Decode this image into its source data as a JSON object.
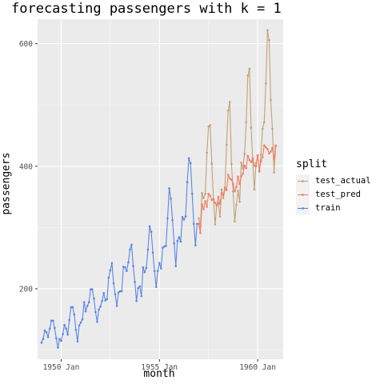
{
  "chart_data": {
    "type": "line",
    "title": "forecasting passengers with k = 1",
    "xlabel": "month",
    "ylabel": "passengers",
    "xlim": [
      1948.8,
      1961.3
    ],
    "ylim": [
      85,
      640
    ],
    "x_ticks": [
      {
        "value": 1950.0,
        "label": "1950 Jan"
      },
      {
        "value": 1955.0,
        "label": "1955 Jan"
      },
      {
        "value": 1960.0,
        "label": "1960 Jan"
      }
    ],
    "y_ticks": [
      {
        "value": 200,
        "label": "200"
      },
      {
        "value": 400,
        "label": "400"
      },
      {
        "value": 600,
        "label": "600"
      }
    ],
    "grid": true,
    "legend": {
      "title": "split",
      "placement": "right"
    },
    "series": [
      {
        "name": "test_actual",
        "color": "#C4A076",
        "x_start": 1957.0,
        "x_step": 0.0833333,
        "values": [
          315,
          301,
          356,
          348,
          355,
          422,
          465,
          467,
          404,
          347,
          305,
          336,
          340,
          318,
          362,
          348,
          363,
          435,
          491,
          505,
          404,
          359,
          310,
          337,
          360,
          342,
          406,
          396,
          420,
          472,
          548,
          559,
          463,
          407,
          362,
          405,
          417,
          391,
          419,
          461,
          472,
          535,
          622,
          606,
          508,
          461,
          390,
          432
        ]
      },
      {
        "name": "test_pred",
        "color": "#F07E64",
        "x_start": 1957.0,
        "x_step": 0.0833333,
        "values": [
          306,
          291,
          338,
          330,
          343,
          334,
          355,
          352,
          345,
          346,
          340,
          336,
          350,
          339,
          356,
          353,
          365,
          361,
          386,
          380,
          378,
          371,
          359,
          366,
          383,
          371,
          384,
          388,
          401,
          397,
          417,
          410,
          407,
          413,
          401,
          400,
          418,
          393,
          408,
          415,
          434,
          431,
          428,
          421,
          424,
          430,
          411,
          434
        ]
      },
      {
        "name": "train",
        "color": "#5B85E6",
        "x_start": 1949.0,
        "x_step": 0.0833333,
        "values": [
          112,
          118,
          132,
          129,
          121,
          135,
          148,
          148,
          136,
          119,
          104,
          118,
          115,
          126,
          141,
          135,
          125,
          149,
          170,
          170,
          158,
          133,
          114,
          140,
          145,
          150,
          178,
          163,
          172,
          178,
          199,
          199,
          184,
          162,
          146,
          166,
          171,
          180,
          193,
          181,
          183,
          218,
          230,
          242,
          209,
          191,
          172,
          194,
          196,
          196,
          236,
          235,
          229,
          243,
          264,
          272,
          237,
          211,
          180,
          201,
          204,
          188,
          235,
          227,
          234,
          264,
          302,
          293,
          259,
          229,
          203,
          229,
          242,
          233,
          267,
          269,
          270,
          315,
          364,
          347,
          312,
          274,
          237,
          278,
          284,
          277,
          317,
          313,
          318,
          374,
          413,
          405,
          355,
          306,
          271,
          306
        ]
      }
    ]
  }
}
